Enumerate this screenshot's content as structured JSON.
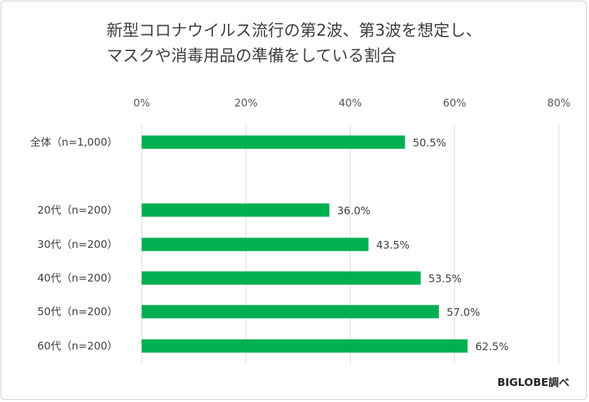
{
  "title_lines": [
    "新型コロナウイルス流行の第2波、第3波を想定し、",
    "マスクや消毒用品の準備をしている割合"
  ],
  "credit": "BIGLOBE調べ",
  "colors": {
    "bar": "#00b050",
    "grid": "#d9d9d9"
  },
  "chart_data": {
    "type": "bar",
    "orientation": "horizontal",
    "title": "新型コロナウイルス流行の第2波、第3波を想定し、マスクや消毒用品の準備をしている割合",
    "categories": [
      "全体（n=1,000）",
      "20代（n=200）",
      "30代（n=200）",
      "40代（n=200）",
      "50代（n=200）",
      "60代（n=200）"
    ],
    "values": [
      50.5,
      36.0,
      43.5,
      53.5,
      57.0,
      62.5
    ],
    "data_labels": [
      "50.5%",
      "36.0%",
      "43.5%",
      "53.5%",
      "57.0%",
      "62.5%"
    ],
    "xlim": [
      0,
      80
    ],
    "xticks": [
      0,
      20,
      40,
      60,
      80
    ],
    "xtick_labels": [
      "0%",
      "20%",
      "40%",
      "60%",
      "80%"
    ],
    "xaxis_position": "top",
    "grid": true,
    "legend": "none"
  }
}
